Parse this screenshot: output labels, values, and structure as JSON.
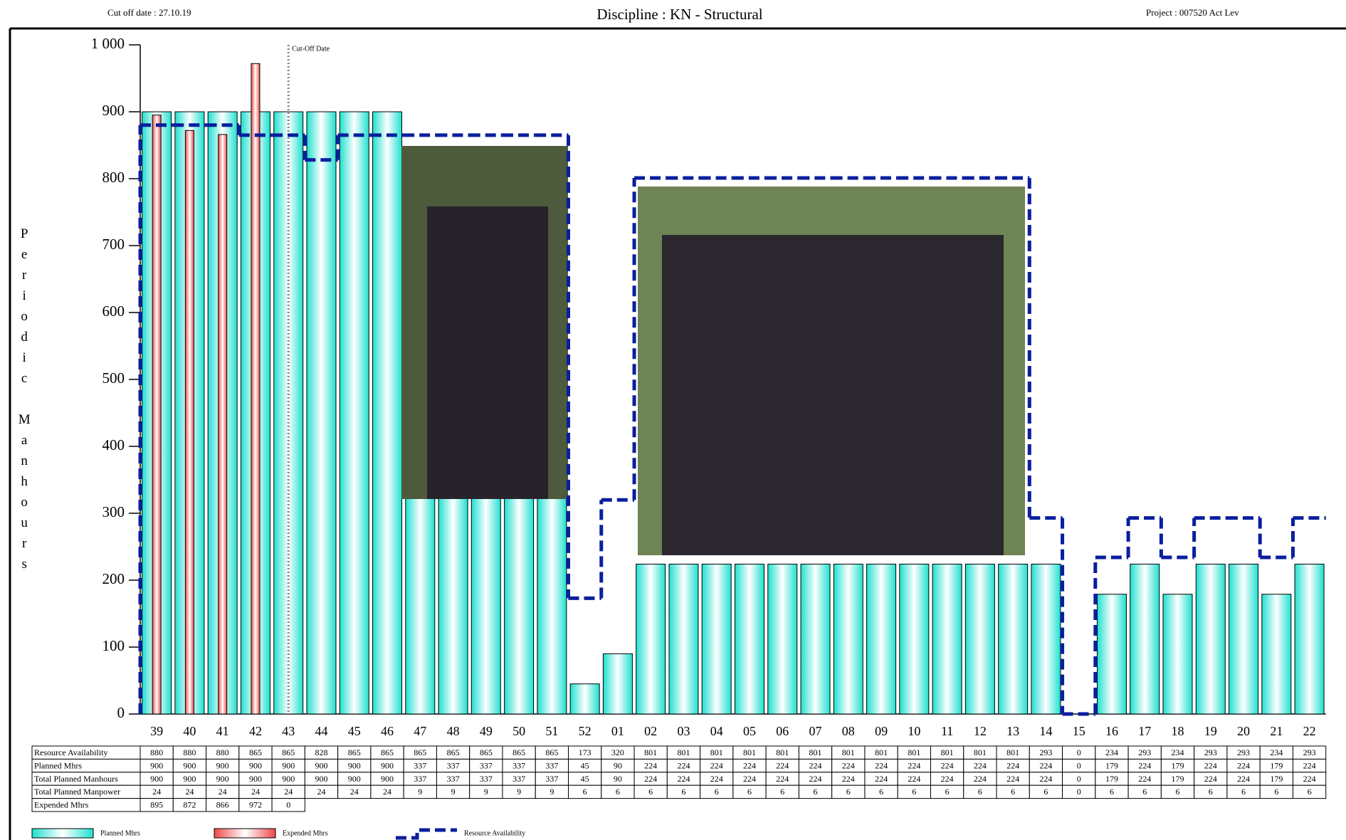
{
  "chart_data": {
    "type": "bar",
    "title": "Discipline : KN - Structural",
    "cut_off_text": "Cut off date : 27.10.19",
    "project_text": "Project : 007520 Act Lev",
    "y_label": "Periodic Manhours",
    "categories": [
      "39",
      "40",
      "41",
      "42",
      "43",
      "44",
      "45",
      "46",
      "47",
      "48",
      "49",
      "50",
      "51",
      "52",
      "01",
      "02",
      "03",
      "04",
      "05",
      "06",
      "07",
      "08",
      "09",
      "10",
      "11",
      "12",
      "13",
      "14",
      "15",
      "16",
      "17",
      "18",
      "19",
      "20",
      "21",
      "22"
    ],
    "series": [
      {
        "name": "Planned Mhrs",
        "color": "#1fe0d0",
        "values": [
          900,
          900,
          900,
          900,
          900,
          900,
          900,
          900,
          337,
          337,
          337,
          337,
          337,
          45,
          90,
          224,
          224,
          224,
          224,
          224,
          224,
          224,
          224,
          224,
          224,
          224,
          224,
          224,
          0,
          179,
          224,
          179,
          224,
          224,
          179,
          224
        ]
      },
      {
        "name": "Expended Mhrs",
        "color": "#f04848",
        "values": [
          895,
          872,
          866,
          972,
          0,
          null,
          null,
          null,
          null,
          null,
          null,
          null,
          null,
          null,
          null,
          null,
          null,
          null,
          null,
          null,
          null,
          null,
          null,
          null,
          null,
          null,
          null,
          null,
          null,
          null,
          null,
          null,
          null,
          null,
          null,
          null
        ]
      },
      {
        "name": "Resource Availability",
        "type": "step",
        "color": "#0a1e9e",
        "values": [
          880,
          880,
          880,
          865,
          865,
          828,
          865,
          865,
          865,
          865,
          865,
          865,
          865,
          173,
          320,
          801,
          801,
          801,
          801,
          801,
          801,
          801,
          801,
          801,
          801,
          801,
          801,
          293,
          0,
          234,
          293,
          234,
          293,
          293,
          234,
          293
        ]
      }
    ],
    "table_extra_rows": [
      {
        "name": "Total Planned Manhours",
        "values": [
          900,
          900,
          900,
          900,
          900,
          900,
          900,
          900,
          337,
          337,
          337,
          337,
          337,
          45,
          90,
          224,
          224,
          224,
          224,
          224,
          224,
          224,
          224,
          224,
          224,
          224,
          224,
          224,
          0,
          179,
          224,
          179,
          224,
          224,
          179,
          224
        ]
      },
      {
        "name": "Total Planned Manpower",
        "values": [
          24,
          24,
          24,
          24,
          24,
          24,
          24,
          24,
          9,
          9,
          9,
          9,
          9,
          6,
          6,
          6,
          6,
          6,
          6,
          6,
          6,
          6,
          6,
          6,
          6,
          6,
          6,
          6,
          0,
          6,
          6,
          6,
          6,
          6,
          6,
          6
        ]
      }
    ],
    "annotation": {
      "text": "Cut-Off Date",
      "x": "43"
    },
    "ylim": [
      0,
      1000
    ],
    "yticks": [
      0,
      100,
      200,
      300,
      400,
      500,
      600,
      700,
      800,
      900,
      {
        "value": 1000,
        "label": "1 000"
      }
    ]
  }
}
